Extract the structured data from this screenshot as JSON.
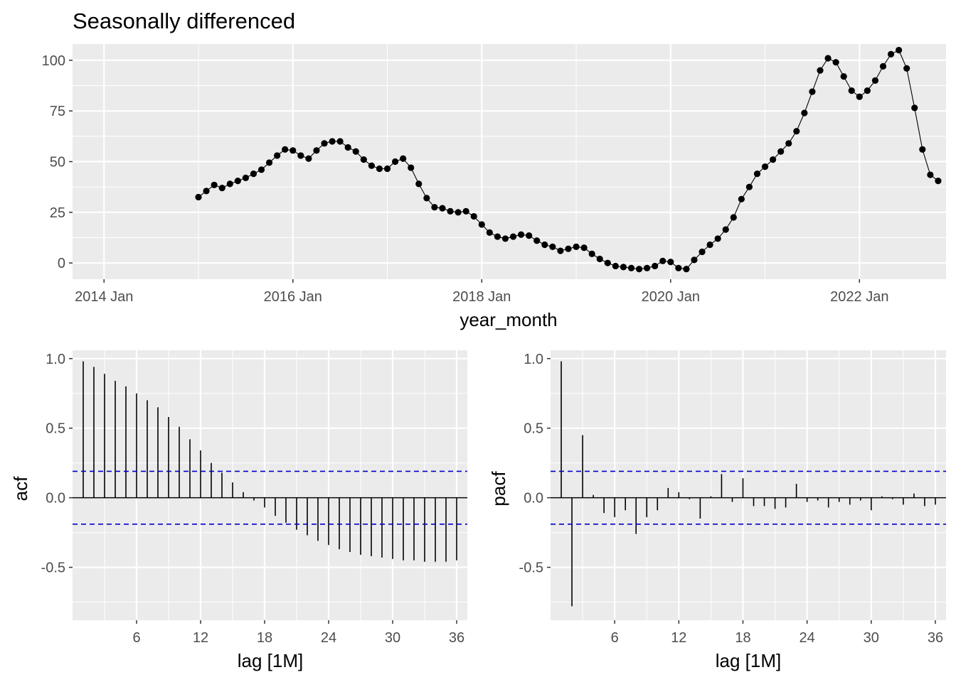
{
  "chart_data": [
    {
      "type": "line",
      "title": "Seasonally differenced",
      "xlabel": "year_month",
      "ylabel": "",
      "x_start": "2015 Jan",
      "x_step": "1 month",
      "xlim": [
        "2013 Sep",
        "2022 Dec"
      ],
      "ylim": [
        -8,
        108
      ],
      "x_tick_labels": [
        "2014 Jan",
        "2016 Jan",
        "2018 Jan",
        "2020 Jan",
        "2022 Jan"
      ],
      "y_ticks": [
        0,
        25,
        50,
        75,
        100
      ],
      "y_tick_labels": [
        "0",
        "25",
        "50",
        "75",
        "100"
      ],
      "grid": true,
      "values": [
        32.5,
        35.5,
        38.5,
        37,
        39,
        40.5,
        42,
        44,
        46,
        49.5,
        53,
        56,
        55.5,
        53,
        51.5,
        55.5,
        59,
        60,
        60,
        57,
        55,
        51,
        48,
        46.5,
        46.5,
        50,
        51.5,
        47,
        39,
        32,
        27.5,
        27,
        25.5,
        25,
        25.5,
        23,
        19,
        15,
        13,
        12,
        13,
        14,
        13.5,
        11,
        9,
        8,
        6,
        7,
        8,
        7.5,
        4.5,
        2,
        0,
        -1.5,
        -2,
        -2.5,
        -3,
        -2.5,
        -1.5,
        1,
        0.5,
        -2.5,
        -3,
        1.5,
        5.5,
        9,
        12,
        16.5,
        22.5,
        31.5,
        37.5,
        44,
        47.5,
        51,
        55,
        59,
        65,
        74,
        84.5,
        95,
        101,
        99,
        92,
        85,
        82,
        85,
        90,
        97,
        103,
        105,
        96,
        76.5,
        56,
        43.5,
        40.5
      ]
    },
    {
      "type": "bar",
      "xlabel": "lag [1M]",
      "ylabel": "acf",
      "lags": [
        1,
        2,
        3,
        4,
        5,
        6,
        7,
        8,
        9,
        10,
        11,
        12,
        13,
        14,
        15,
        16,
        17,
        18,
        19,
        20,
        21,
        22,
        23,
        24,
        25,
        26,
        27,
        28,
        29,
        30,
        31,
        32,
        33,
        34,
        35,
        36
      ],
      "values": [
        0.98,
        0.94,
        0.89,
        0.84,
        0.8,
        0.75,
        0.7,
        0.65,
        0.58,
        0.51,
        0.42,
        0.34,
        0.25,
        0.18,
        0.11,
        0.04,
        -0.02,
        -0.07,
        -0.13,
        -0.18,
        -0.23,
        -0.27,
        -0.31,
        -0.34,
        -0.37,
        -0.39,
        -0.41,
        -0.42,
        -0.43,
        -0.44,
        -0.45,
        -0.45,
        -0.46,
        -0.46,
        -0.46,
        -0.45
      ],
      "ci": 0.19,
      "xlim": [
        0,
        37
      ],
      "ylim": [
        -0.88,
        1.06
      ],
      "x_ticks": [
        6,
        12,
        18,
        24,
        30,
        36
      ],
      "x_tick_labels": [
        "6",
        "12",
        "18",
        "24",
        "30",
        "36"
      ],
      "y_ticks": [
        -0.5,
        0,
        0.5,
        1
      ],
      "y_tick_labels": [
        "-0.5",
        "0.0",
        "0.5",
        "1.0"
      ],
      "grid": true
    },
    {
      "type": "bar",
      "xlabel": "lag [1M]",
      "ylabel": "pacf",
      "lags": [
        1,
        2,
        3,
        4,
        5,
        6,
        7,
        8,
        9,
        10,
        11,
        12,
        13,
        14,
        15,
        16,
        17,
        18,
        19,
        20,
        21,
        22,
        23,
        24,
        25,
        26,
        27,
        28,
        29,
        30,
        31,
        32,
        33,
        34,
        35,
        36
      ],
      "values": [
        0.98,
        -0.78,
        0.45,
        0.02,
        -0.11,
        -0.14,
        -0.09,
        -0.26,
        -0.14,
        -0.09,
        0.07,
        0.04,
        -0.01,
        -0.15,
        0.01,
        0.17,
        -0.03,
        0.14,
        -0.06,
        -0.06,
        -0.08,
        -0.07,
        0.1,
        -0.03,
        -0.02,
        -0.07,
        -0.03,
        -0.05,
        -0.02,
        -0.09,
        0.01,
        -0.01,
        -0.05,
        0.03,
        -0.06,
        -0.05
      ],
      "ci": 0.19,
      "xlim": [
        0,
        37
      ],
      "ylim": [
        -0.88,
        1.06
      ],
      "x_ticks": [
        6,
        12,
        18,
        24,
        30,
        36
      ],
      "x_tick_labels": [
        "6",
        "12",
        "18",
        "24",
        "30",
        "36"
      ],
      "y_ticks": [
        -0.5,
        0,
        0.5,
        1
      ],
      "y_tick_labels": [
        "-0.5",
        "0.0",
        "0.5",
        "1.0"
      ],
      "grid": true
    }
  ],
  "colors": {
    "panel_background": "#ebebeb",
    "grid_line": "#ffffff",
    "series": "#000000",
    "ci_line": "#0000cc",
    "tick_label": "#4d4d4d"
  }
}
